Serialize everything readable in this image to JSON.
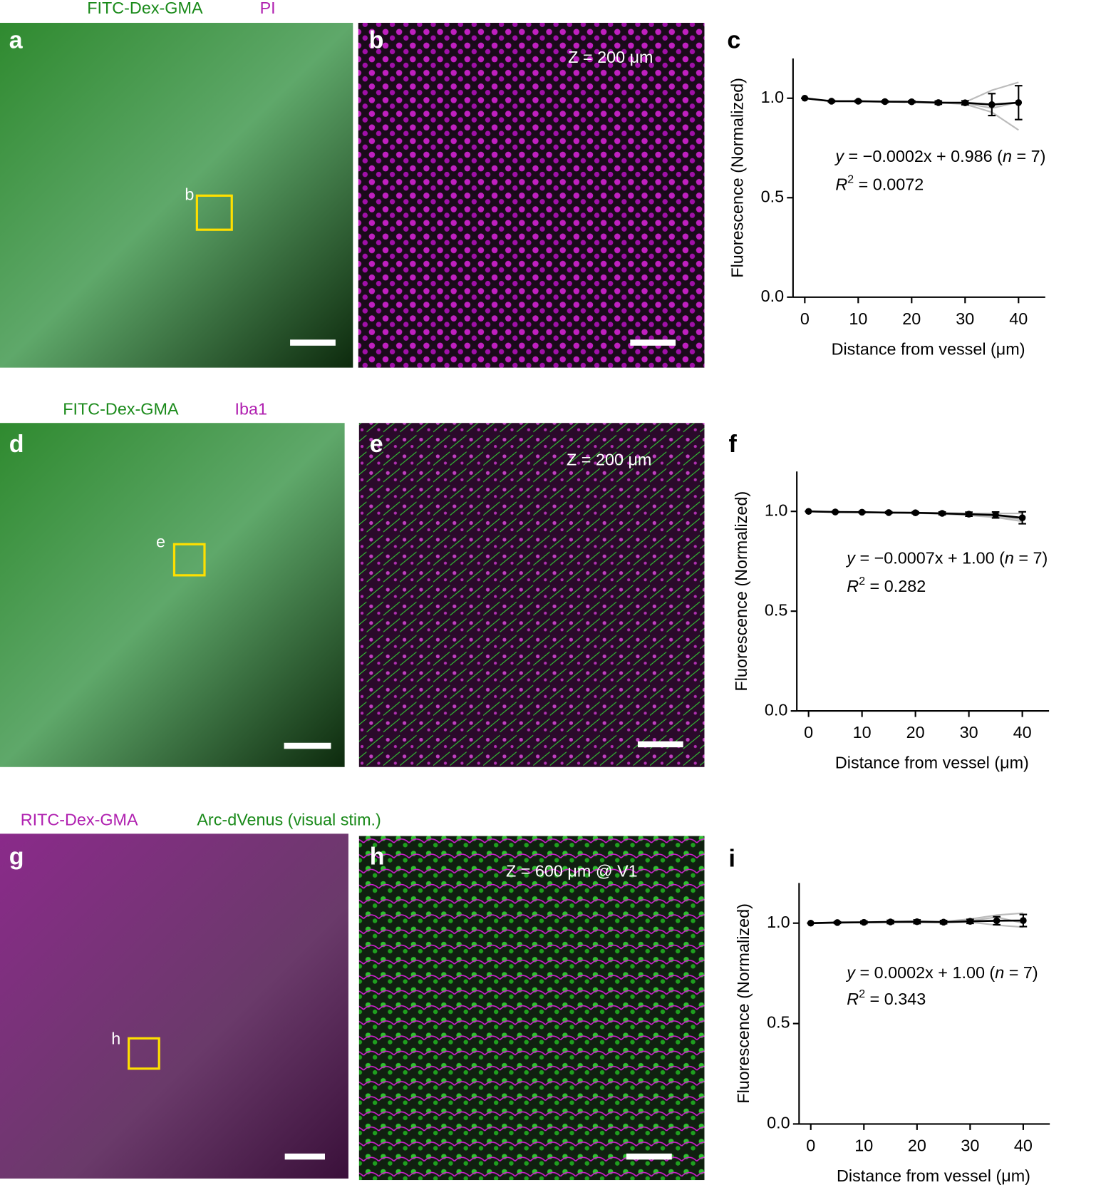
{
  "channel_labels": [
    [
      "FITC-Dex-GMA",
      "PI"
    ],
    [
      "FITC-Dex-GMA",
      "Iba1"
    ],
    [
      "RITC-Dex-GMA",
      "Arc-dVenus (visual stim.)"
    ]
  ],
  "panels": [
    {
      "letter": "a",
      "box_label": "b"
    },
    {
      "letter": "b",
      "depth": "Z = 200 μm"
    },
    {
      "letter": "d",
      "box_label": "e"
    },
    {
      "letter": "e",
      "depth": "Z = 200 μm"
    },
    {
      "letter": "g",
      "box_label": "h"
    },
    {
      "letter": "h",
      "depth": "Z = 600 μm @ V1"
    }
  ],
  "chart_data": [
    {
      "type": "line",
      "panel": "c",
      "x_label": "Distance from vessel (μm)",
      "y_label": "Fluorescence (Normalized)",
      "equation": [
        "y",
        " = −0.0002x + 0.986 (",
        "n",
        " = 7)"
      ],
      "r2": [
        "R",
        "2",
        " = 0.0072"
      ],
      "x": [
        0,
        5,
        10,
        15,
        20,
        25,
        30,
        35,
        40
      ],
      "xlim": [
        -2.2,
        45
      ],
      "xticks": [
        0,
        10,
        20,
        30,
        40
      ],
      "ylim": [
        0,
        1.2
      ],
      "yticks": [
        {
          "value": 0,
          "label": "0.0"
        },
        {
          "value": 0.5,
          "label": "0.5"
        },
        {
          "value": 1,
          "label": "1.0"
        }
      ],
      "series": [
        {
          "color": "#000000",
          "values": [
            1.0,
            0.985,
            0.985,
            0.983,
            0.982,
            0.978,
            0.977,
            0.968,
            0.978
          ],
          "errors": [
            0,
            0.004,
            0.004,
            0.004,
            0.005,
            0.008,
            0.01,
            0.055,
            0.085
          ]
        },
        {
          "color": "#bbbbbb",
          "values": [
            1.0,
            0.985,
            0.985,
            0.983,
            0.98,
            0.975,
            0.98,
            1.04,
            1.08
          ]
        },
        {
          "color": "#bbbbbb",
          "values": [
            1.0,
            0.985,
            0.984,
            0.982,
            0.982,
            0.98,
            0.975,
            0.95,
            0.98
          ]
        },
        {
          "color": "#bbbbbb",
          "values": [
            1.0,
            0.984,
            0.985,
            0.983,
            0.983,
            0.978,
            0.97,
            0.93,
            0.84
          ]
        }
      ]
    },
    {
      "type": "line",
      "panel": "f",
      "x_label": "Distance from vessel (μm)",
      "y_label": "Fluorescence (Normalized)",
      "equation": [
        "y",
        " = −0.0007x + 1.00 (",
        "n",
        " = 7)"
      ],
      "r2": [
        "R",
        "2",
        " = 0.282"
      ],
      "x": [
        0,
        5,
        10,
        15,
        20,
        25,
        30,
        35,
        40
      ],
      "xlim": [
        -2.2,
        45
      ],
      "xticks": [
        0,
        10,
        20,
        30,
        40
      ],
      "ylim": [
        0,
        1.2
      ],
      "yticks": [
        {
          "value": 0,
          "label": "0.0"
        },
        {
          "value": 0.5,
          "label": "0.5"
        },
        {
          "value": 1,
          "label": "1.0"
        }
      ],
      "series": [
        {
          "color": "#000000",
          "values": [
            1.0,
            0.997,
            0.996,
            0.994,
            0.993,
            0.99,
            0.986,
            0.982,
            0.968
          ],
          "errors": [
            0,
            0.003,
            0.003,
            0.004,
            0.005,
            0.007,
            0.01,
            0.015,
            0.03
          ]
        },
        {
          "color": "#bbbbbb",
          "values": [
            1.0,
            0.997,
            0.996,
            0.995,
            0.994,
            0.992,
            0.99,
            0.99,
            0.99
          ]
        },
        {
          "color": "#bbbbbb",
          "values": [
            1.0,
            0.996,
            0.995,
            0.993,
            0.991,
            0.987,
            0.98,
            0.97,
            0.95
          ]
        },
        {
          "color": "#bbbbbb",
          "values": [
            1.0,
            0.997,
            0.996,
            0.994,
            0.993,
            0.99,
            0.984,
            0.975,
            0.96
          ]
        }
      ]
    },
    {
      "type": "line",
      "panel": "i",
      "x_label": "Distance from vessel (μm)",
      "y_label": "Fluorescence (Normalized)",
      "equation": [
        "y",
        " = 0.0002x + 1.00 (",
        "n",
        " = 7)"
      ],
      "r2": [
        "R",
        "2",
        " = 0.343"
      ],
      "x": [
        0,
        5,
        10,
        15,
        20,
        25,
        30,
        35,
        40
      ],
      "xlim": [
        -2.2,
        45
      ],
      "xticks": [
        0,
        10,
        20,
        30,
        40
      ],
      "ylim": [
        0,
        1.2
      ],
      "yticks": [
        {
          "value": 0,
          "label": "0.0"
        },
        {
          "value": 0.5,
          "label": "0.5"
        },
        {
          "value": 1,
          "label": "1.0"
        }
      ],
      "series": [
        {
          "color": "#000000",
          "values": [
            1.0,
            1.003,
            1.004,
            1.006,
            1.007,
            1.005,
            1.009,
            1.012,
            1.013
          ],
          "errors": [
            0,
            0.004,
            0.006,
            0.008,
            0.009,
            0.008,
            0.01,
            0.02,
            0.03
          ]
        },
        {
          "color": "#bbbbbb",
          "values": [
            1.0,
            1.004,
            1.005,
            1.008,
            1.01,
            1.008,
            1.02,
            1.04,
            1.05
          ]
        },
        {
          "color": "#bbbbbb",
          "values": [
            1.0,
            1.003,
            1.003,
            1.005,
            1.006,
            1.004,
            1.005,
            0.99,
            0.98
          ]
        },
        {
          "color": "#bbbbbb",
          "values": [
            1.0,
            1.002,
            1.004,
            1.006,
            1.006,
            1.006,
            1.012,
            1.03,
            1.0
          ]
        }
      ]
    }
  ]
}
